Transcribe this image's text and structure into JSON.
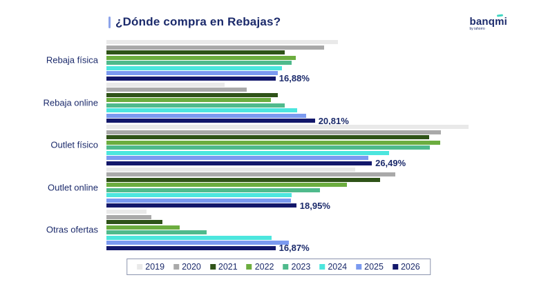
{
  "title": "¿Dónde compra en Rebajas?",
  "logo": {
    "brand": "banqmi",
    "tagline": "by iahorro"
  },
  "colors": {
    "title_text": "#1b2a6b",
    "accent_bar": "#8ca3ea",
    "legend_border": "#8a93ad",
    "logo_accent": "#3fd6c2"
  },
  "chart_data": {
    "type": "bar",
    "orientation": "horizontal",
    "grid": false,
    "legend_position": "bottom",
    "xlim": [
      0,
      40
    ],
    "unit": "%",
    "categories": [
      "Rebaja física",
      "Rebaja online",
      "Outlet físico",
      "Outlet online",
      "Otras ofertas"
    ],
    "series": [
      {
        "name": "2019",
        "color": "#e9e9e9",
        "values": [
          23.1,
          11.8,
          36.1,
          24.8,
          4.0
        ]
      },
      {
        "name": "2020",
        "color": "#a9a9a9",
        "values": [
          21.7,
          14.0,
          33.4,
          28.8,
          4.5
        ]
      },
      {
        "name": "2021",
        "color": "#2f5318",
        "values": [
          17.8,
          17.1,
          32.2,
          27.3,
          5.6
        ]
      },
      {
        "name": "2022",
        "color": "#6cad3f",
        "values": [
          18.9,
          16.4,
          33.3,
          24.0,
          7.3
        ]
      },
      {
        "name": "2023",
        "color": "#4fba8c",
        "values": [
          18.5,
          17.8,
          32.3,
          21.3,
          10.0
        ]
      },
      {
        "name": "2024",
        "color": "#4ce6de",
        "values": [
          17.5,
          19.0,
          28.2,
          18.5,
          16.5
        ]
      },
      {
        "name": "2025",
        "color": "#7b9af0",
        "values": [
          17.1,
          19.9,
          26.1,
          18.4,
          18.2
        ]
      },
      {
        "name": "2026",
        "color": "#13186b",
        "values": [
          16.88,
          20.81,
          26.49,
          18.95,
          16.87
        ]
      }
    ],
    "data_labels": {
      "series": "2026",
      "values": [
        "16,88%",
        "20,81%",
        "26,49%",
        "18,95%",
        "16,87%"
      ]
    }
  }
}
